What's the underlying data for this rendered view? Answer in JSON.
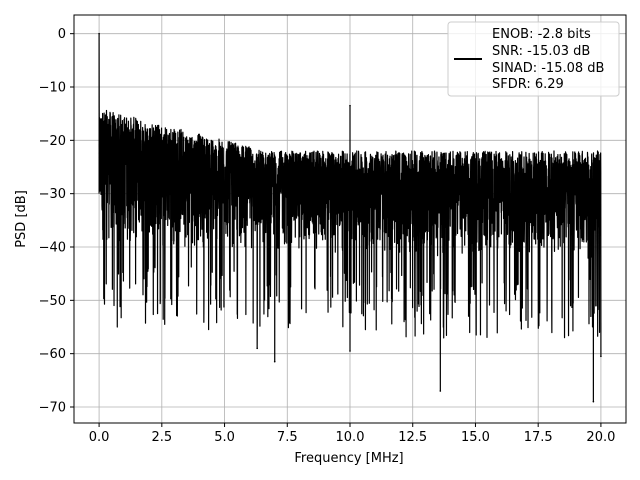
{
  "chart_data": {
    "type": "line",
    "title": "",
    "xlabel": "Frequency [MHz]",
    "ylabel": "PSD [dB]",
    "xlim": [
      -1.0,
      21.0
    ],
    "ylim": [
      -73.0,
      3.5
    ],
    "xticks": [
      0.0,
      2.5,
      5.0,
      7.5,
      10.0,
      12.5,
      15.0,
      17.5,
      20.0
    ],
    "xtick_labels": [
      "0.0",
      "2.5",
      "5.0",
      "7.5",
      "10.0",
      "12.5",
      "15.0",
      "17.5",
      "20.0"
    ],
    "yticks": [
      0,
      -10,
      -20,
      -30,
      -40,
      -50,
      -60,
      -70
    ],
    "ytick_labels": [
      "0",
      "−10",
      "−20",
      "−30",
      "−40",
      "−50",
      "−60",
      "−70"
    ],
    "grid": true,
    "legend": {
      "placement": "top-right",
      "entries": [
        "ENOB: -2.8 bits",
        "SNR: -15.03 dB",
        "SINAD: -15.08 dB",
        "SFDR: 6.29"
      ]
    },
    "series": [
      {
        "color": "#000000",
        "x_range": [
          0.0,
          20.0
        ],
        "noise_floor_upper_db": [
          -14,
          -22
        ],
        "noise_floor_lower_db": [
          -40,
          -43
        ],
        "peaks": [
          {
            "x": 0.0,
            "y": 0.0
          },
          {
            "x": 10.0,
            "y": -13.5
          }
        ],
        "deep_dips": [
          {
            "x": 6.3,
            "y": -59.0
          },
          {
            "x": 7.0,
            "y": -61.5
          },
          {
            "x": 10.0,
            "y": -59.5
          },
          {
            "x": 13.6,
            "y": -67.0
          },
          {
            "x": 19.7,
            "y": -69.0
          },
          {
            "x": 20.0,
            "y": -60.5
          }
        ]
      }
    ]
  }
}
